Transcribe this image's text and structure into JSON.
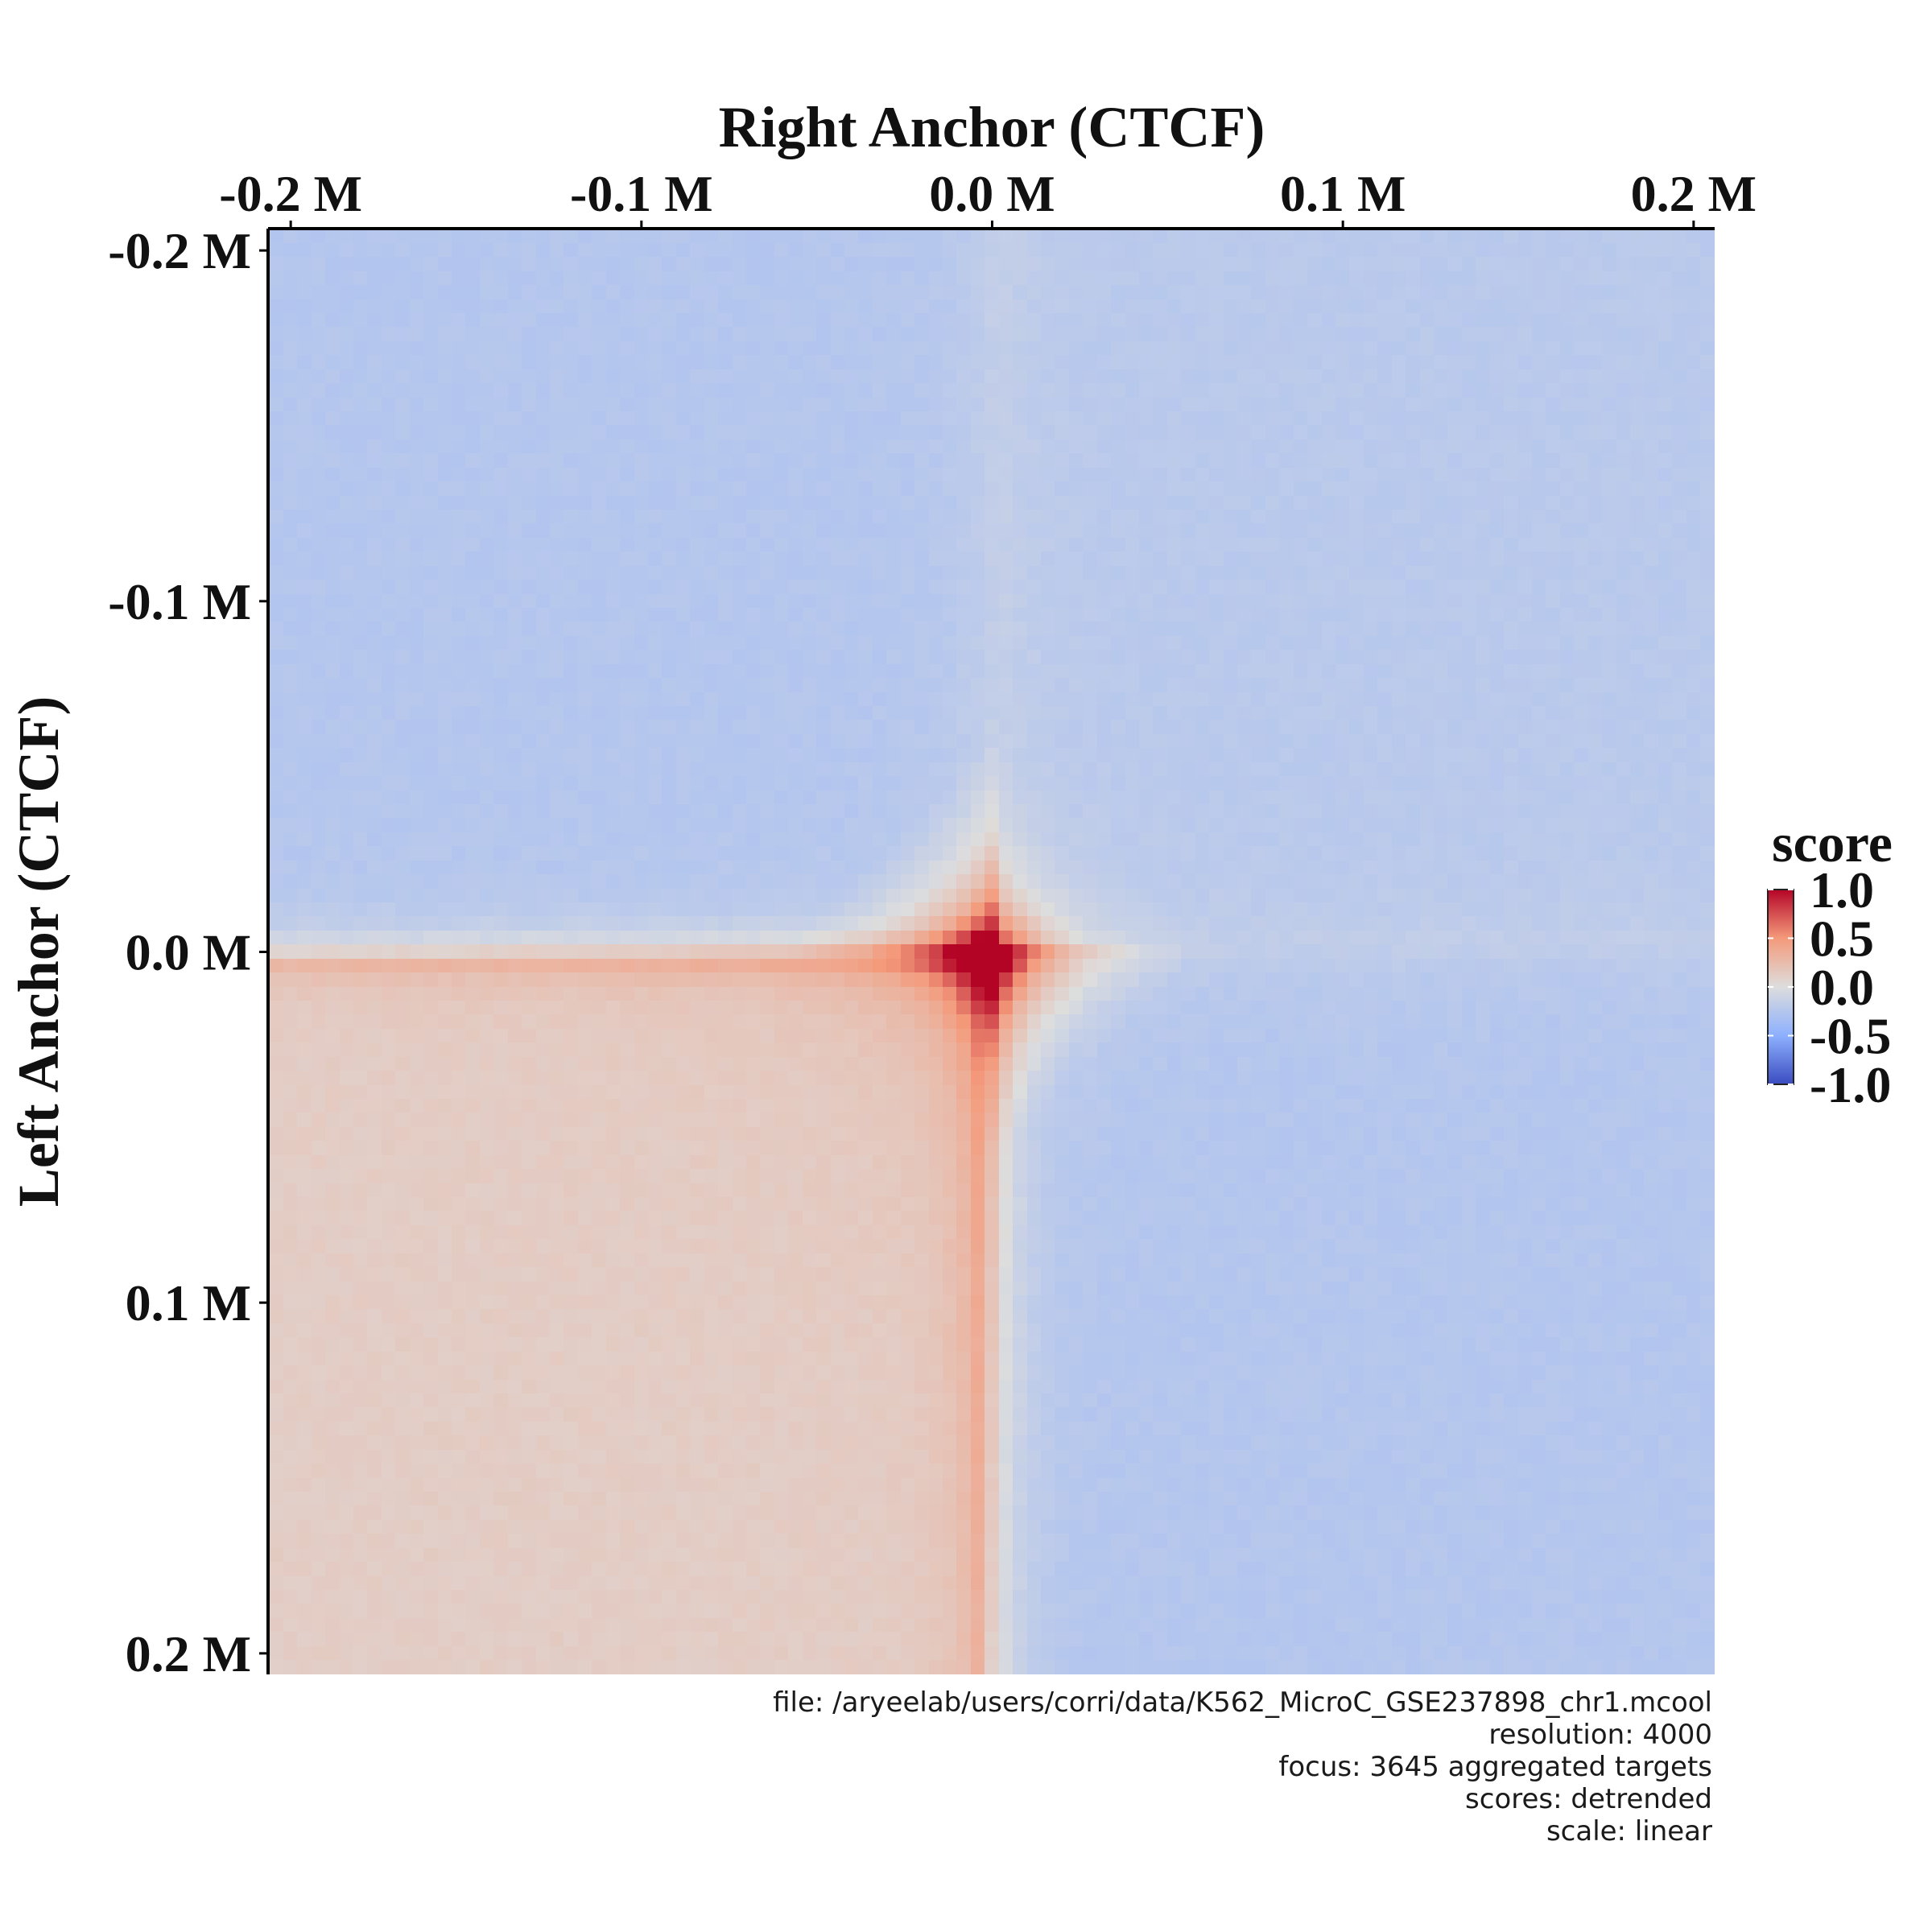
{
  "chart_data": {
    "type": "heatmap",
    "title": "",
    "xlabel": "Right Anchor (CTCF)",
    "ylabel": "Left Anchor (CTCF)",
    "x_axis_position": "top",
    "x_ticks": [
      {
        "value": -0.2,
        "label": "-0.2 M"
      },
      {
        "value": -0.1,
        "label": "-0.1 M"
      },
      {
        "value": 0.0,
        "label": "0.0 M"
      },
      {
        "value": 0.1,
        "label": "0.1 M"
      },
      {
        "value": 0.2,
        "label": "0.2 M"
      }
    ],
    "y_ticks": [
      {
        "value": -0.2,
        "label": "-0.2 M"
      },
      {
        "value": -0.1,
        "label": "-0.1 M"
      },
      {
        "value": 0.0,
        "label": "0.0 M"
      },
      {
        "value": 0.1,
        "label": "0.1 M"
      },
      {
        "value": 0.2,
        "label": "0.2 M"
      }
    ],
    "xlim": [
      -0.206,
      0.206
    ],
    "ylim": [
      -0.206,
      0.206
    ],
    "y_inverted": true,
    "unit": "Mb",
    "grid_resolution_bins": 103,
    "peak": {
      "x": 0.0,
      "y": 0.0,
      "score": 1.0
    },
    "colorbar": {
      "title": "score",
      "min": -1.0,
      "max": 1.0,
      "ticks": [
        {
          "value": 1.0,
          "label": "1.0"
        },
        {
          "value": 0.5,
          "label": "0.5"
        },
        {
          "value": 0.0,
          "label": "0.0"
        },
        {
          "value": -0.5,
          "label": "-0.5"
        },
        {
          "value": -1.0,
          "label": "-1.0"
        }
      ],
      "colors": {
        "low": "#3b4cc0",
        "mid": "#dddddd",
        "high": "#b40426"
      },
      "position": "right"
    },
    "grid": false,
    "legend": "right"
  },
  "caption": {
    "lines": [
      "file: /aryeelab/users/corri/data/K562_MicroC_GSE237898_chr1.mcool",
      "resolution: 4000",
      "focus: 3645 aggregated targets",
      "scores: detrended",
      "scale: linear"
    ]
  }
}
